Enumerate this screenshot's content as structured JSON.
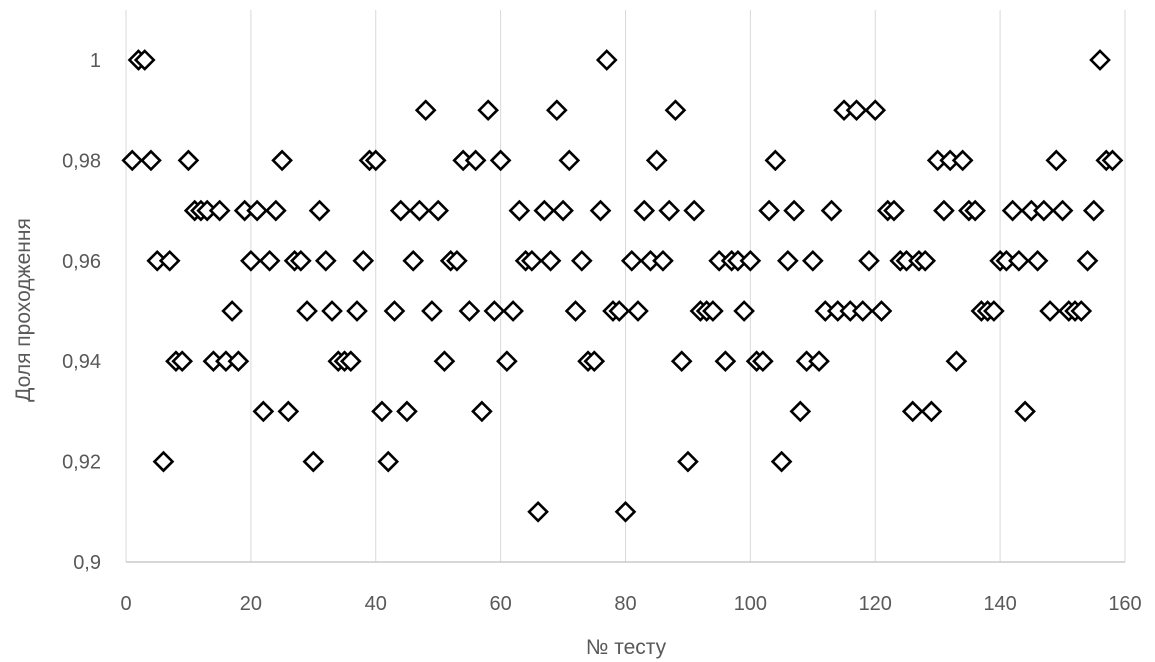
{
  "chart_data": {
    "type": "scatter",
    "title": "",
    "xlabel": "№ тесту",
    "ylabel": "Доля проходження",
    "xlim": [
      0,
      160
    ],
    "ylim": [
      0.9,
      1.0
    ],
    "x_ticks": [
      0,
      20,
      40,
      60,
      80,
      100,
      120,
      140,
      160
    ],
    "y_ticks": [
      0.9,
      0.92,
      0.94,
      0.96,
      0.98,
      1.0
    ],
    "x_tick_labels": [
      "0",
      "20",
      "40",
      "60",
      "80",
      "100",
      "120",
      "140",
      "160"
    ],
    "y_tick_labels": [
      "0,9",
      "0,92",
      "0,94",
      "0,96",
      "0,98",
      "1"
    ],
    "grid": "vertical",
    "legend": "none",
    "marker": "diamond",
    "marker_color": "#000000",
    "x": [
      1,
      2,
      3,
      4,
      5,
      6,
      7,
      8,
      9,
      10,
      11,
      12,
      13,
      14,
      15,
      16,
      17,
      18,
      19,
      20,
      21,
      22,
      23,
      24,
      25,
      26,
      27,
      28,
      29,
      30,
      31,
      32,
      33,
      34,
      35,
      36,
      37,
      38,
      39,
      40,
      41,
      42,
      43,
      44,
      45,
      46,
      47,
      48,
      49,
      50,
      51,
      52,
      53,
      54,
      55,
      56,
      57,
      58,
      59,
      60,
      61,
      62,
      63,
      64,
      65,
      66,
      67,
      68,
      69,
      70,
      71,
      72,
      73,
      74,
      75,
      76,
      77,
      78,
      79,
      80,
      81,
      82,
      83,
      84,
      85,
      86,
      87,
      88,
      89,
      90,
      91,
      92,
      93,
      94,
      95,
      96,
      97,
      98,
      99,
      100,
      101,
      102,
      103,
      104,
      105,
      106,
      107,
      108,
      109,
      110,
      111,
      112,
      113,
      114,
      115,
      116,
      117,
      118,
      119,
      120,
      121,
      122,
      123,
      124,
      125,
      126,
      127,
      128,
      129,
      130,
      131,
      132,
      133,
      134,
      135,
      136,
      137,
      138,
      139,
      140,
      141,
      142,
      143,
      144,
      145,
      146,
      147,
      148,
      149,
      150,
      151,
      152,
      153,
      154,
      155,
      156,
      157,
      158
    ],
    "y": [
      0.98,
      1.0,
      1.0,
      0.98,
      0.96,
      0.92,
      0.96,
      0.94,
      0.94,
      0.98,
      0.97,
      0.97,
      0.97,
      0.94,
      0.97,
      0.94,
      0.95,
      0.94,
      0.97,
      0.96,
      0.97,
      0.93,
      0.96,
      0.97,
      0.98,
      0.93,
      0.96,
      0.96,
      0.95,
      0.92,
      0.97,
      0.96,
      0.95,
      0.94,
      0.94,
      0.94,
      0.95,
      0.96,
      0.98,
      0.98,
      0.93,
      0.92,
      0.95,
      0.97,
      0.93,
      0.96,
      0.97,
      0.99,
      0.95,
      0.97,
      0.94,
      0.96,
      0.96,
      0.98,
      0.95,
      0.98,
      0.93,
      0.99,
      0.95,
      0.98,
      0.94,
      0.95,
      0.97,
      0.96,
      0.96,
      0.91,
      0.97,
      0.96,
      0.99,
      0.97,
      0.98,
      0.95,
      0.96,
      0.94,
      0.94,
      0.97,
      1.0,
      0.95,
      0.95,
      0.91,
      0.96,
      0.95,
      0.97,
      0.96,
      0.98,
      0.96,
      0.97,
      0.99,
      0.94,
      0.92,
      0.97,
      0.95,
      0.95,
      0.95,
      0.96,
      0.94,
      0.96,
      0.96,
      0.95,
      0.96,
      0.94,
      0.94,
      0.97,
      0.98,
      0.92,
      0.96,
      0.97,
      0.93,
      0.94,
      0.96,
      0.94,
      0.95,
      0.97,
      0.95,
      0.99,
      0.95,
      0.99,
      0.95,
      0.96,
      0.99,
      0.95,
      0.97,
      0.97,
      0.96,
      0.96,
      0.93,
      0.96,
      0.96,
      0.93,
      0.98,
      0.97,
      0.98,
      0.94,
      0.98,
      0.97,
      0.97,
      0.95,
      0.95,
      0.95,
      0.96,
      0.96,
      0.97,
      0.96,
      0.93,
      0.97,
      0.96,
      0.97,
      0.95,
      0.98,
      0.97,
      0.95,
      0.95,
      0.95,
      0.96,
      0.97,
      1.0,
      0.98,
      0.98
    ]
  }
}
